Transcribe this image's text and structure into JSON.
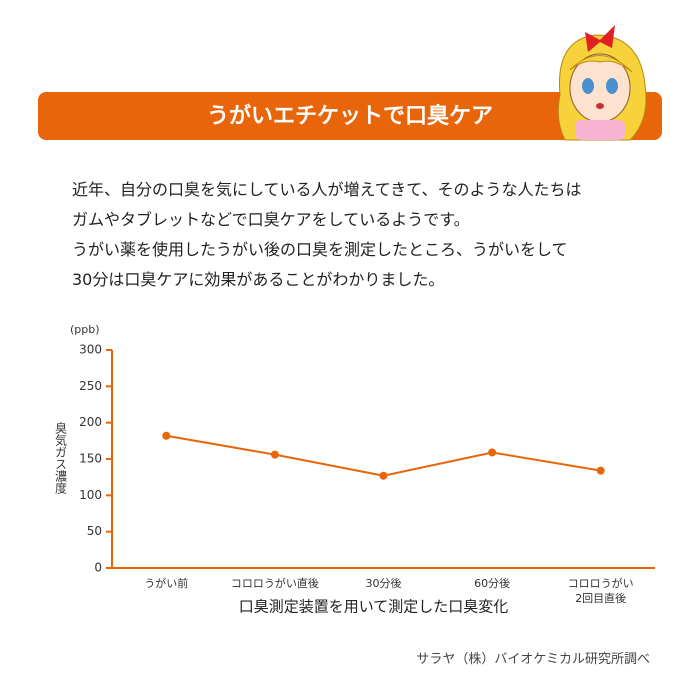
{
  "header": {
    "title": "うがいエチケットで口臭ケア"
  },
  "paragraphs": [
    "近年、自分の口臭を気にしている人が増えてきて、そのような人たちは",
    "ガムやタブレットなどで口臭ケアをしているようです。",
    "うがい薬を使用したうがい後の口臭を測定したところ、うがいをして",
    "30分は口臭ケアに効果があることがわかりました。"
  ],
  "chart_data": {
    "type": "line",
    "unit": "(ppb)",
    "y_label": "臭気ガス濃度",
    "x_label": "口臭測定装置を用いて測定した口臭変化",
    "categories": [
      "うがい前",
      "コロロうがい直後",
      "30分後",
      "60分後",
      "コロロうがい\n2回目直後"
    ],
    "values": [
      182,
      156,
      127,
      159,
      134
    ],
    "color": "#e8650a",
    "ylim": [
      0,
      300
    ],
    "yticks": [
      0,
      50,
      100,
      150,
      200,
      250,
      300
    ],
    "grid": false
  },
  "source": "サラヤ（株）バイオケミカル研究所調べ"
}
